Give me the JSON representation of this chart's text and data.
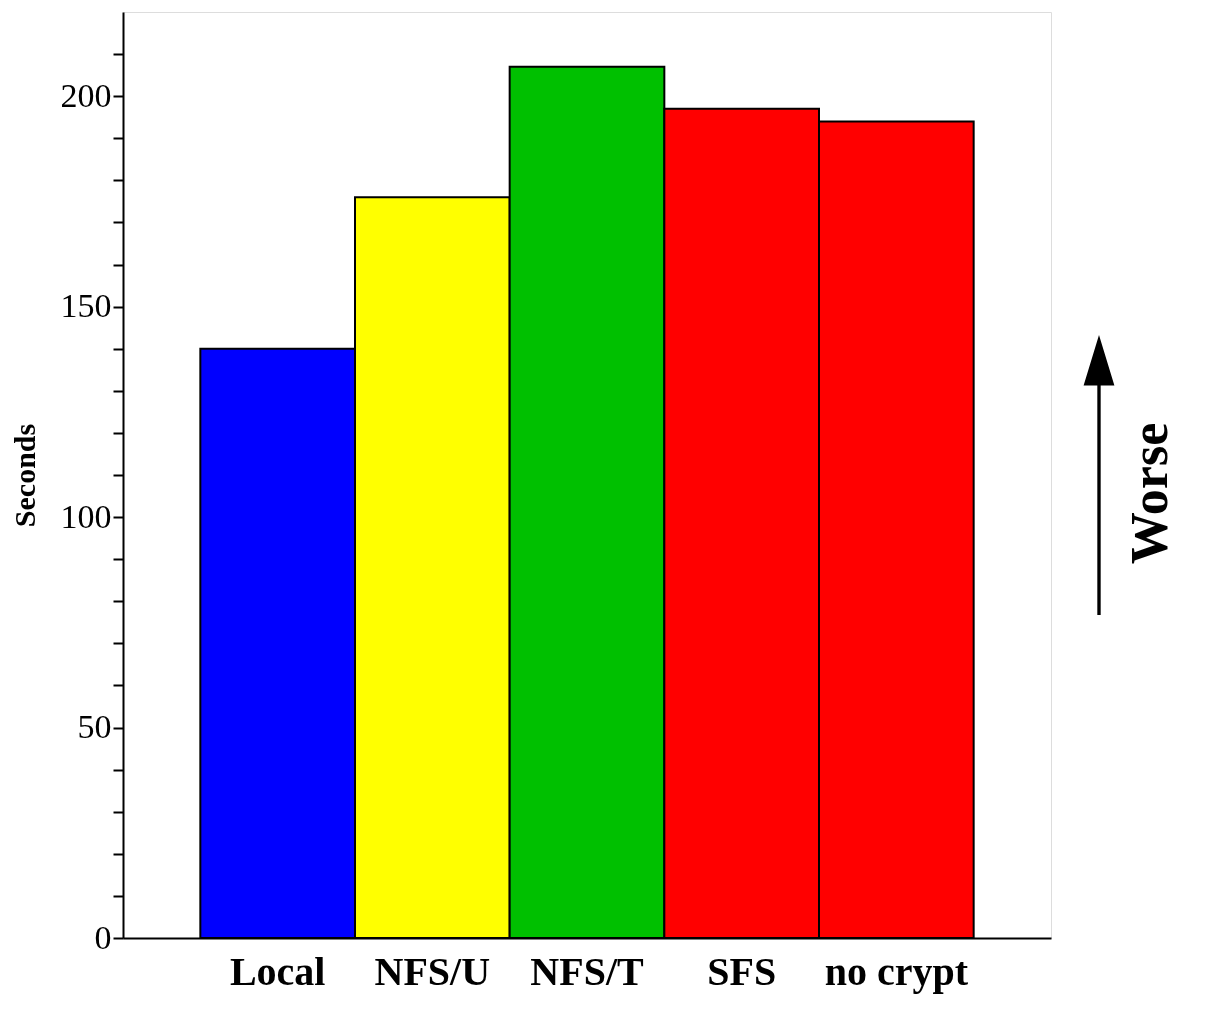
{
  "chart_data": {
    "type": "bar",
    "ylabel": "Seconds",
    "categories": [
      "Local",
      "NFS/U",
      "NFS/T",
      "SFS",
      "no crypt"
    ],
    "values": [
      140,
      176,
      207,
      197,
      194
    ],
    "colors": [
      "#0000ff",
      "#ffff00",
      "#00c000",
      "#ff0000",
      "#ff0000"
    ],
    "ylim": [
      0,
      220
    ],
    "yticks": [
      0,
      {
        "value": 10,
        "label": null
      },
      {
        "value": 20,
        "label": null
      },
      {
        "value": 30,
        "label": null
      },
      {
        "value": 40,
        "label": null
      },
      50,
      {
        "value": 60,
        "label": null
      },
      {
        "value": 70,
        "label": null
      },
      {
        "value": 80,
        "label": null
      },
      {
        "value": 90,
        "label": null
      },
      100,
      {
        "value": 110,
        "label": null
      },
      {
        "value": 120,
        "label": null
      },
      {
        "value": 130,
        "label": null
      },
      {
        "value": 140,
        "label": null
      },
      150,
      {
        "value": 160,
        "label": null
      },
      {
        "value": 170,
        "label": null
      },
      {
        "value": 180,
        "label": null
      },
      {
        "value": 190,
        "label": null
      },
      200,
      {
        "value": 210,
        "label": null
      }
    ],
    "annotations": [
      "Worse"
    ],
    "grid": false
  }
}
